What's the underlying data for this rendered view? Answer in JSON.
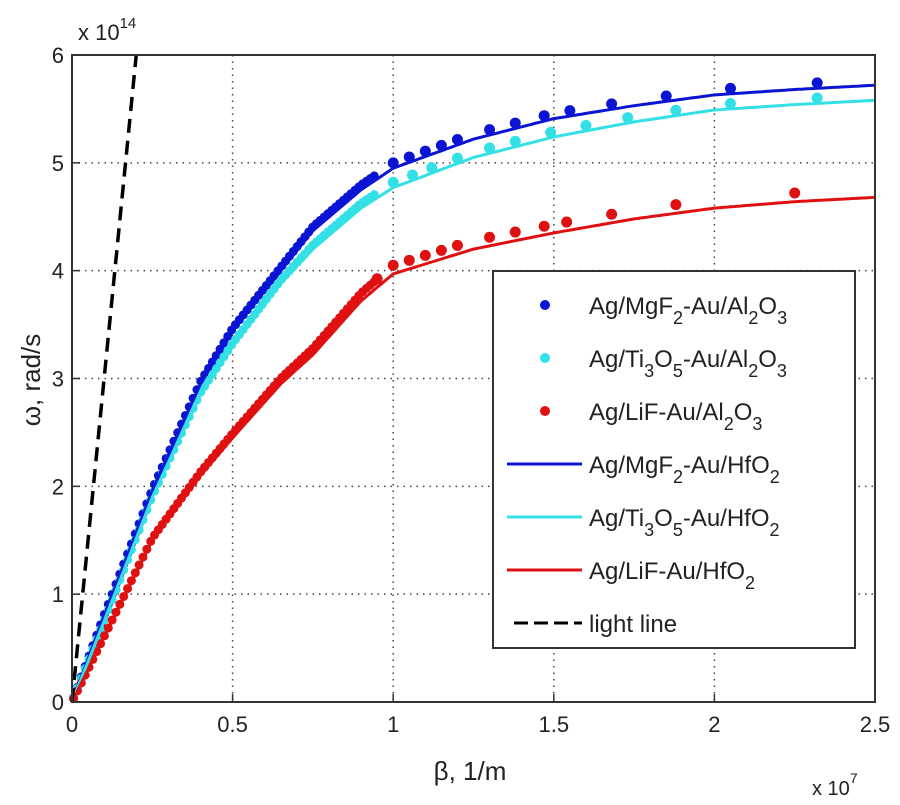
{
  "chart_data": {
    "type": "line",
    "title": "",
    "xlabel": "β, 1/m",
    "ylabel": "ω, rad/s",
    "x_multiplier": "x 10",
    "x_multiplier_exp": "7",
    "y_multiplier": "x 10",
    "y_multiplier_exp": "14",
    "xlim": [
      0,
      2.5
    ],
    "ylim": [
      0,
      6
    ],
    "xticks": [
      "0",
      "0.5",
      "1",
      "1.5",
      "2",
      "2.5"
    ],
    "yticks": [
      "0",
      "1",
      "2",
      "3",
      "4",
      "5",
      "6"
    ],
    "grid": true,
    "legend_position": "center-right",
    "series": [
      {
        "name": "Ag/MgF2-Au/HfO2",
        "kind": "line",
        "color": "#0a14d2",
        "x": [
          0,
          0.1,
          0.25,
          0.4,
          0.5,
          0.65,
          0.75,
          0.9,
          1.0,
          1.25,
          1.5,
          1.75,
          2.0,
          2.25,
          2.5
        ],
        "y": [
          0,
          0.8,
          1.96,
          2.95,
          3.44,
          4.0,
          4.37,
          4.75,
          4.95,
          5.22,
          5.41,
          5.53,
          5.63,
          5.68,
          5.72
        ]
      },
      {
        "name": "Ag/Ti3O5-Au/HfO2",
        "kind": "line",
        "color": "#33e0e6",
        "x": [
          0,
          0.1,
          0.25,
          0.4,
          0.5,
          0.65,
          0.75,
          0.9,
          1.0,
          1.25,
          1.5,
          1.75,
          2.0,
          2.25,
          2.5
        ],
        "y": [
          0,
          0.75,
          1.9,
          2.85,
          3.3,
          3.88,
          4.2,
          4.58,
          4.77,
          5.05,
          5.24,
          5.38,
          5.49,
          5.54,
          5.58
        ]
      },
      {
        "name": "Ag/LiF-Au/HfO2",
        "kind": "line",
        "color": "#e01010",
        "x": [
          0,
          0.1,
          0.25,
          0.4,
          0.5,
          0.65,
          0.75,
          0.9,
          1.0,
          1.25,
          1.5,
          1.75,
          2.0,
          2.25,
          2.5
        ],
        "y": [
          0,
          0.6,
          1.5,
          2.1,
          2.45,
          2.95,
          3.22,
          3.72,
          3.97,
          4.2,
          4.35,
          4.48,
          4.58,
          4.64,
          4.68
        ]
      },
      {
        "name": "Ag/MgF2-Au/Al2O3",
        "kind": "marker",
        "color": "#0a14d2",
        "offset": 0.05,
        "x": [
          1.0,
          1.05,
          1.1,
          1.15,
          1.2,
          1.3,
          1.38,
          1.47,
          1.55,
          1.68,
          1.85,
          2.05,
          2.32
        ]
      },
      {
        "name": "Ag/Ti3O5-Au/Al2O3",
        "kind": "marker",
        "color": "#33e0e6",
        "offset": 0.05,
        "x": [
          1.0,
          1.06,
          1.12,
          1.2,
          1.3,
          1.38,
          1.49,
          1.6,
          1.73,
          1.88,
          2.05,
          2.32
        ]
      },
      {
        "name": "Ag/LiF-Au/Al2O3",
        "kind": "marker",
        "color": "#e01010",
        "offset": 0.08,
        "x": [
          0.95,
          1.0,
          1.05,
          1.1,
          1.15,
          1.2,
          1.3,
          1.38,
          1.47,
          1.54,
          1.68,
          1.88,
          2.25
        ]
      },
      {
        "name": "light line",
        "kind": "dashed",
        "color": "#000000",
        "x": [
          0,
          0.2
        ],
        "y": [
          0,
          6
        ]
      }
    ],
    "legend": [
      {
        "kind": "marker",
        "color": "#0a14d2",
        "parts": [
          [
            "Ag/MgF",
            ""
          ],
          [
            "2",
            "sub"
          ],
          [
            "-Au/Al",
            ""
          ],
          [
            "2",
            "sub"
          ],
          [
            "O",
            ""
          ],
          [
            "3",
            "sub"
          ]
        ]
      },
      {
        "kind": "marker",
        "color": "#33e0e6",
        "parts": [
          [
            "Ag/Ti",
            ""
          ],
          [
            "3",
            "sub"
          ],
          [
            "O",
            ""
          ],
          [
            "5",
            "sub"
          ],
          [
            "-Au/Al",
            ""
          ],
          [
            "2",
            "sub"
          ],
          [
            "O",
            ""
          ],
          [
            "3",
            "sub"
          ]
        ]
      },
      {
        "kind": "marker",
        "color": "#e01010",
        "parts": [
          [
            "Ag/LiF-Au/Al",
            ""
          ],
          [
            "2",
            "sub"
          ],
          [
            "O",
            ""
          ],
          [
            "3",
            "sub"
          ]
        ]
      },
      {
        "kind": "line",
        "color": "#0a14d2",
        "parts": [
          [
            "Ag/MgF",
            ""
          ],
          [
            "2",
            "sub"
          ],
          [
            "-Au/HfO",
            ""
          ],
          [
            "2",
            "sub"
          ]
        ]
      },
      {
        "kind": "line",
        "color": "#33e0e6",
        "parts": [
          [
            "Ag/Ti",
            ""
          ],
          [
            "3",
            "sub"
          ],
          [
            "O",
            ""
          ],
          [
            "5",
            "sub"
          ],
          [
            "-Au/HfO",
            ""
          ],
          [
            "2",
            "sub"
          ]
        ]
      },
      {
        "kind": "line",
        "color": "#e01010",
        "parts": [
          [
            "Ag/LiF-Au/HfO",
            ""
          ],
          [
            "2",
            "sub"
          ]
        ]
      },
      {
        "kind": "dashed",
        "color": "#000000",
        "parts": [
          [
            "light line",
            ""
          ]
        ]
      }
    ]
  }
}
